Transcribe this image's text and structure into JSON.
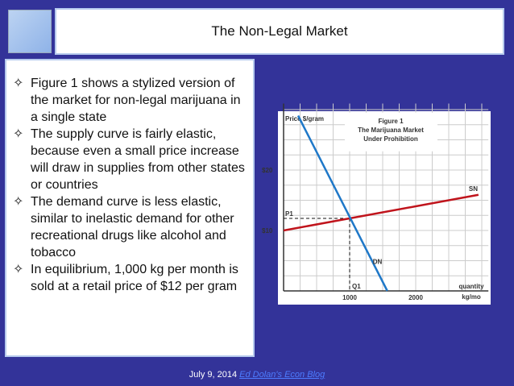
{
  "title": "The Non-Legal Market",
  "bullet_icon": "four-pointed-star-icon",
  "bullets": [
    "Figure 1 shows a stylized version of the market for non-legal marijuana in a single state",
    "The supply curve is fairly elastic, because even a small price increase will draw in supplies from other states or countries",
    "The demand curve is less elastic, similar to inelastic demand for other recreational drugs like alcohol and tobacco",
    "In equilibrium, 1,000 kg per month is sold at a retail price of $12 per gram"
  ],
  "footer": {
    "date": "July 9, 2014",
    "link": "Ed Dolan's Econ Blog"
  },
  "colors": {
    "background": "#333399",
    "supply": "#c0141c",
    "demand": "#1f78c8",
    "link": "#4d7cff"
  },
  "chart_data": {
    "type": "line",
    "title_lines": [
      "Figure 1",
      "The Marijuana Market",
      "Under Prohibition"
    ],
    "ylabel": "Price $/gram",
    "xlabel_lines": [
      "quantity",
      "kg/mo"
    ],
    "xticks": [
      {
        "value": 1000,
        "label": "1000"
      },
      {
        "value": 2000,
        "label": "2000"
      }
    ],
    "yticks": [
      {
        "value": 10,
        "label": "$10"
      },
      {
        "value": 20,
        "label": "$20"
      }
    ],
    "xlim": [
      0,
      3100
    ],
    "ylim": [
      0,
      31
    ],
    "grid": true,
    "series": [
      {
        "name": "SN",
        "color": "#c0141c",
        "points": [
          [
            0,
            10
          ],
          [
            2950,
            15.9
          ]
        ]
      },
      {
        "name": "DN",
        "color": "#1f78c8",
        "points": [
          [
            220,
            29
          ],
          [
            1570,
            0
          ]
        ]
      }
    ],
    "equilibrium": {
      "q": 1000,
      "p": 12,
      "q_label": "Q1",
      "p_label": "P1"
    }
  }
}
